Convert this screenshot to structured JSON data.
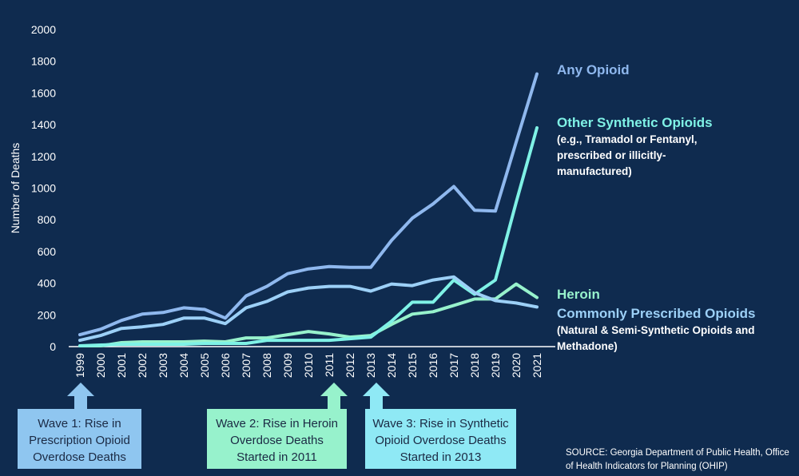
{
  "chart_data": {
    "type": "line",
    "ylabel": "Number of Deaths",
    "ylim": [
      0,
      2000
    ],
    "y_ticks": [
      "0",
      "200",
      "400",
      "600",
      "800",
      "1000",
      "1200",
      "1400",
      "1600",
      "1800",
      "2000"
    ],
    "x": [
      "1999",
      "2000",
      "2001",
      "2002",
      "2003",
      "2004",
      "2005",
      "2006",
      "2007",
      "2008",
      "2009",
      "2010",
      "2011",
      "2012",
      "2013",
      "2014",
      "2015",
      "2016",
      "2017",
      "2018",
      "2019",
      "2020",
      "2021"
    ],
    "series": [
      {
        "name": "Any Opioid",
        "color": "#8fb8ee",
        "values": [
          75,
          110,
          165,
          205,
          215,
          245,
          235,
          180,
          320,
          380,
          460,
          490,
          505,
          500,
          500,
          670,
          810,
          900,
          1010,
          860,
          855,
          1290,
          1720
        ]
      },
      {
        "name": "Other Synthetic Opioids",
        "color": "#7ff2e6",
        "values": [
          5,
          10,
          15,
          15,
          15,
          15,
          20,
          20,
          20,
          40,
          40,
          40,
          40,
          50,
          60,
          160,
          280,
          280,
          420,
          330,
          420,
          910,
          1380
        ]
      },
      {
        "name": "Heroin",
        "color": "#97f2cc",
        "values": [
          5,
          5,
          25,
          30,
          30,
          30,
          35,
          30,
          55,
          55,
          75,
          95,
          80,
          60,
          70,
          140,
          205,
          220,
          260,
          300,
          300,
          395,
          310
        ]
      },
      {
        "name": "Commonly Prescribed Opioids",
        "color": "#9cd0f7",
        "values": [
          40,
          70,
          115,
          125,
          140,
          180,
          180,
          145,
          245,
          285,
          345,
          370,
          380,
          380,
          350,
          395,
          385,
          420,
          440,
          340,
          290,
          275,
          250
        ]
      }
    ],
    "annotations": {
      "any_opioid": "Any Opioid",
      "other_synthetic": "Other Synthetic Opioids",
      "other_synthetic_sub1": "(e.g., Tramadol or Fentanyl,",
      "other_synthetic_sub2": "prescribed or illicitly-",
      "other_synthetic_sub3": "manufactured)",
      "heroin": "Heroin",
      "prescribed": "Commonly Prescribed Opioids",
      "prescribed_sub1": "(Natural & Semi-Synthetic Opioids and",
      "prescribed_sub2": "Methadone)"
    }
  },
  "waves": [
    {
      "line1": "Wave 1: Rise in",
      "line2": "Prescription Opioid",
      "line3": "Overdose Deaths",
      "color": "#8fc6f0",
      "arrow_color": "#8fc6f0"
    },
    {
      "line1": "Wave 2: Rise in Heroin",
      "line2": "Overdose Deaths",
      "line3": "Started in 2011",
      "color": "#97f2cc",
      "arrow_color": "#97f2cc"
    },
    {
      "line1": "Wave 3: Rise in Synthetic",
      "line2": "Opioid Overdose Deaths",
      "line3": "Started in 2013",
      "color": "#8fe9f5",
      "arrow_color": "#8fe9f5"
    }
  ],
  "source": {
    "line1": "SOURCE: Georgia Department of Public Health, Office",
    "line2": "of Health Indicators for Planning (OHIP)"
  }
}
